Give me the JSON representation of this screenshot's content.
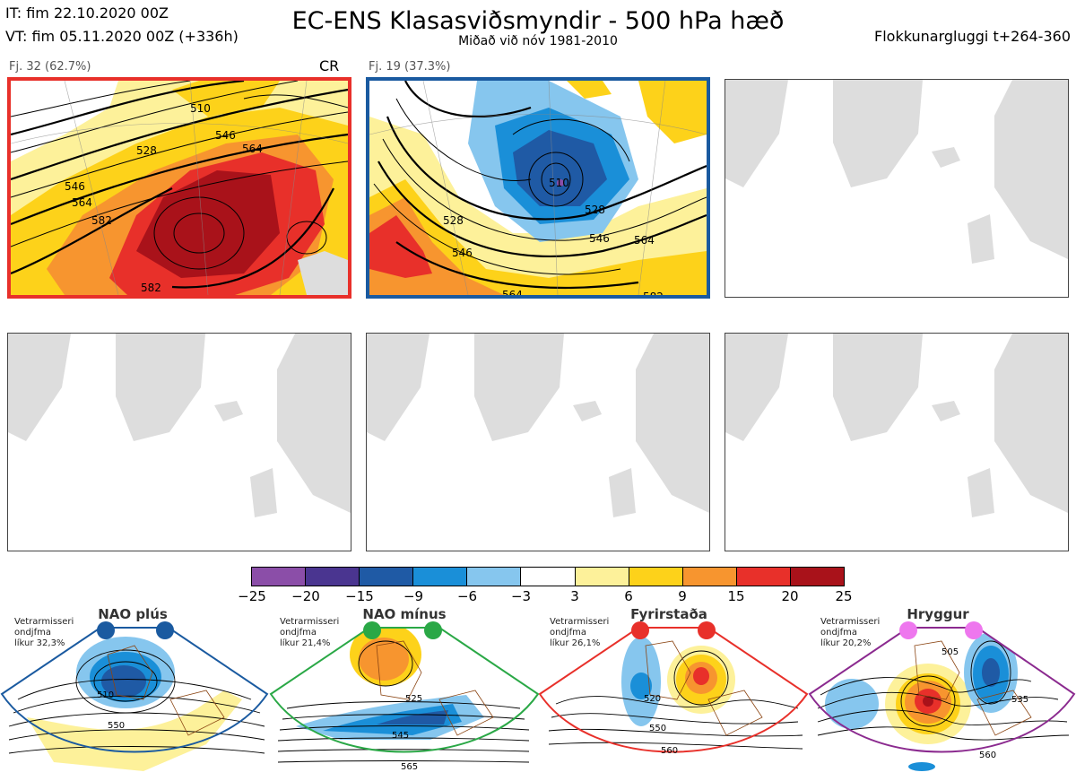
{
  "header": {
    "it_line": "IT: fim 22.10.2020 00Z",
    "vt_line": "VT: fim 05.11.2020 00Z  (+336h)",
    "title": "EC-ENS Klasasviðsmyndir - 500 hPa hæð",
    "subtitle": "Miðað við nóv 1981-2010",
    "window": "Flokkunargluggi t+264-360"
  },
  "clusters": [
    {
      "label": "Fj. 32 (62.7%)",
      "tag": "CR",
      "border_color": "#e8302a",
      "contours": [
        "510",
        "528",
        "546",
        "564",
        "582",
        "546",
        "564",
        "582",
        "546",
        "564",
        "528"
      ]
    },
    {
      "label": "Fj. 19 (37.3%)",
      "tag": "",
      "border_color": "#1a5aa0",
      "contours": [
        "528",
        "546",
        "564",
        "582",
        "510",
        "528",
        "546",
        "564"
      ]
    }
  ],
  "colorbar": {
    "colors": [
      "#8b4ea8",
      "#4a3590",
      "#1f5aa5",
      "#1a8fd8",
      "#86c6ee",
      "#ffffff",
      "#fdf19a",
      "#fdd21a",
      "#f7952f",
      "#e8302a",
      "#a9121a"
    ],
    "labels": [
      "−25",
      "−20",
      "−15",
      "−9",
      "−6",
      "−3",
      "3",
      "6",
      "9",
      "15",
      "20",
      "25"
    ]
  },
  "regimes": [
    {
      "name": "NAO plús",
      "info": [
        "Vetrarmisseri",
        "ondjfma",
        "líkur 32,3%"
      ],
      "color": "#1a5aa0",
      "dot_color": "#1a5aa0",
      "contours": [
        "510",
        "550"
      ]
    },
    {
      "name": "NAO mínus",
      "info": [
        "Vetrarmisseri",
        "ondjfma",
        "líkur 21,4%"
      ],
      "color": "#2aa846",
      "dot_color": "#2aa846",
      "contours": [
        "525",
        "545",
        "565"
      ]
    },
    {
      "name": "Fyrirstaða",
      "info": [
        "Vetrarmisseri",
        "ondjfma",
        "líkur 26,1%"
      ],
      "color": "#e8302a",
      "dot_color": "#e8302a",
      "contours": [
        "520",
        "550",
        "560"
      ]
    },
    {
      "name": "Hryggur",
      "info": [
        "Vetrarmisseri",
        "ondjfma",
        "líkur 20,2%"
      ],
      "color": "#8b2a8f",
      "dot_color": "#ee77ee",
      "contours": [
        "505",
        "535",
        "560"
      ]
    }
  ]
}
